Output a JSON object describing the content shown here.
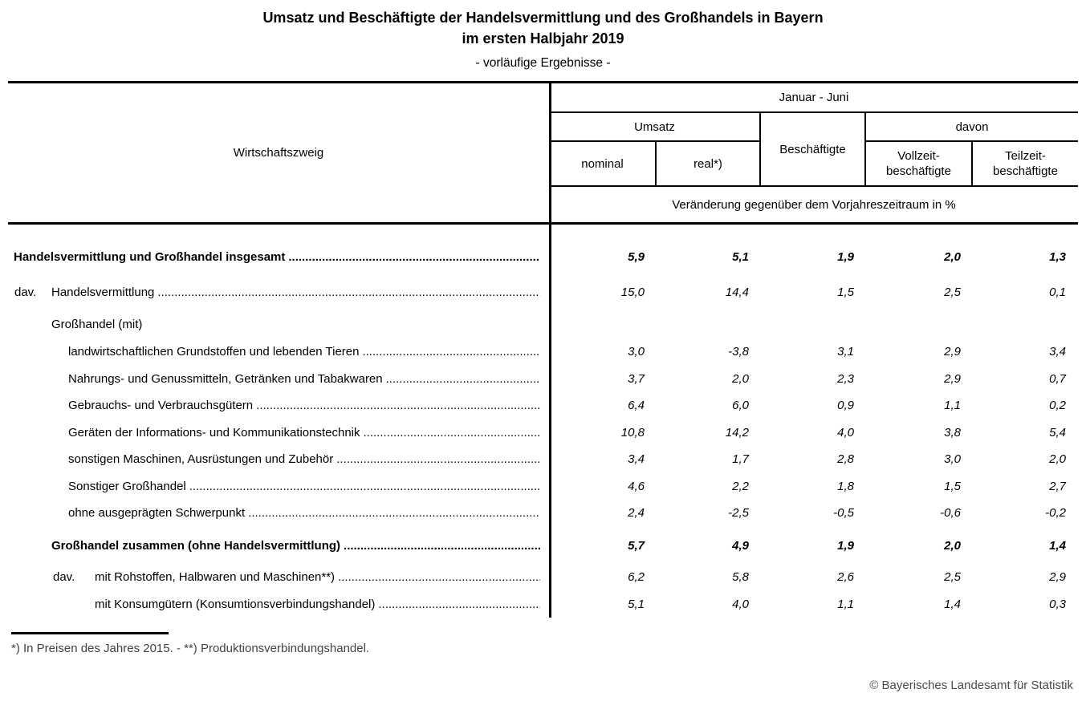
{
  "page": {
    "title_line1": "Umsatz und Beschäftigte der Handelsvermittlung und des Großhandels in Bayern",
    "title_line2": "im ersten Halbjahr 2019",
    "subtitle": "- vorläufige Ergebnisse -",
    "footnote": "*) In Preisen des Jahres 2015. - **) Produktionsverbindungshandel.",
    "copyright": "© Bayerisches Landesamt für Statistik"
  },
  "table": {
    "stub_header": "Wirtschaftszweig",
    "period_header": "Januar - Juni",
    "group_headers": {
      "umsatz": "Umsatz",
      "beschaeftigte": "Beschäftigte",
      "davon": "davon"
    },
    "column_headers": {
      "nominal": "nominal",
      "real": "real*)",
      "vollzeit_line1": "Vollzeit-",
      "vollzeit_line2": "beschäftigte",
      "teilzeit_line1": "Teilzeit-",
      "teilzeit_line2": "beschäftigte"
    },
    "unit_header": "Veränderung gegenüber dem Vorjahreszeitraum in %",
    "columns": [
      "nominal",
      "real",
      "beschaeftigte",
      "vollzeitbeschaeftigte",
      "teilzeitbeschaeftigte"
    ],
    "rows": [
      {
        "prefix": "",
        "label": "Handelsvermittlung und Großhandel insgesamt",
        "indent": 0,
        "bold": true,
        "leader": true,
        "values": [
          "5,9",
          "5,1",
          "1,9",
          "2,0",
          "1,3"
        ]
      },
      {
        "prefix": "dav.",
        "label": "Handelsvermittlung",
        "indent": 1,
        "bold": false,
        "leader": true,
        "values": [
          "15,0",
          "14,4",
          "1,5",
          "2,5",
          "0,1"
        ]
      },
      {
        "prefix": "",
        "label": "Großhandel (mit)",
        "indent": 1,
        "bold": false,
        "leader": false,
        "values": [
          "",
          "",
          "",
          "",
          ""
        ]
      },
      {
        "prefix": "",
        "label": "landwirtschaftlichen Grundstoffen und lebenden Tieren",
        "indent": 2,
        "bold": false,
        "leader": true,
        "values": [
          "3,0",
          "-3,8",
          "3,1",
          "2,9",
          "3,4"
        ]
      },
      {
        "prefix": "",
        "label": "Nahrungs- und Genussmitteln, Getränken und Tabakwaren",
        "indent": 2,
        "bold": false,
        "leader": true,
        "values": [
          "3,7",
          "2,0",
          "2,3",
          "2,9",
          "0,7"
        ]
      },
      {
        "prefix": "",
        "label": "Gebrauchs- und Verbrauchsgütern",
        "indent": 2,
        "bold": false,
        "leader": true,
        "values": [
          "6,4",
          "6,0",
          "0,9",
          "1,1",
          "0,2"
        ]
      },
      {
        "prefix": "",
        "label": "Geräten der Informations- und Kommunikationstechnik",
        "indent": 2,
        "bold": false,
        "leader": true,
        "values": [
          "10,8",
          "14,2",
          "4,0",
          "3,8",
          "5,4"
        ]
      },
      {
        "prefix": "",
        "label": "sonstigen Maschinen, Ausrüstungen und Zubehör",
        "indent": 2,
        "bold": false,
        "leader": true,
        "values": [
          "3,4",
          "1,7",
          "2,8",
          "3,0",
          "2,0"
        ]
      },
      {
        "prefix": "",
        "label": "Sonstiger Großhandel",
        "indent": 2,
        "bold": false,
        "leader": true,
        "values": [
          "4,6",
          "2,2",
          "1,8",
          "1,5",
          "2,7"
        ]
      },
      {
        "prefix": "",
        "label": "ohne ausgeprägten Schwerpunkt",
        "indent": 2,
        "bold": false,
        "leader": true,
        "values": [
          "2,4",
          "-2,5",
          "-0,5",
          "-0,6",
          "-0,2"
        ]
      },
      {
        "prefix": "",
        "label": "Großhandel zusammen (ohne Handelsvermittlung)",
        "indent": 1,
        "bold": true,
        "leader": true,
        "values": [
          "5,7",
          "4,9",
          "1,9",
          "2,0",
          "1,4"
        ]
      },
      {
        "prefix": "dav.",
        "label": "mit Rohstoffen, Halbwaren und Maschinen**)",
        "indent": 3,
        "bold": false,
        "leader": true,
        "values": [
          "6,2",
          "5,8",
          "2,6",
          "2,5",
          "2,9"
        ]
      },
      {
        "prefix": "",
        "label": "mit Konsumgütern (Konsumtionsverbindungshandel)",
        "indent": 3,
        "bold": false,
        "leader": true,
        "values": [
          "5,1",
          "4,0",
          "1,1",
          "1,4",
          "0,3"
        ]
      }
    ]
  }
}
